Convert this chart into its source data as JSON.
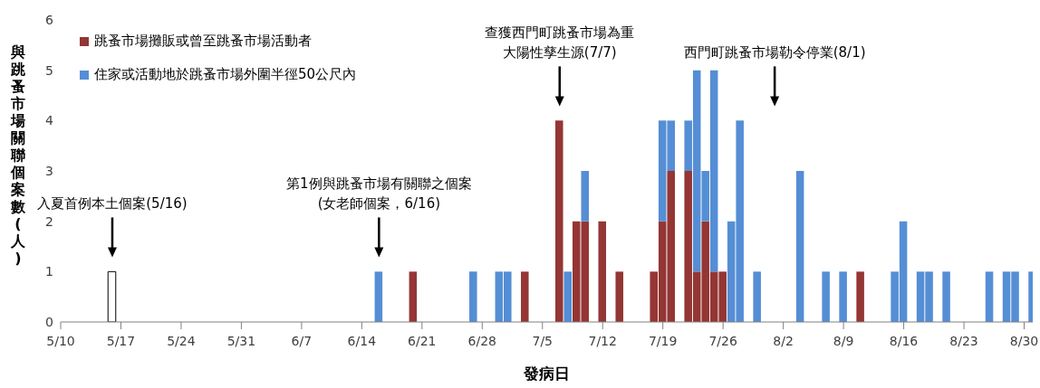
{
  "chart_data": {
    "type": "bar",
    "stacked": true,
    "xlabel": "發病日",
    "ylabel": "與跳蚤市場關聯個案數(人)",
    "xlim": [
      "--05-10",
      "--08-31"
    ],
    "xticks": [
      {
        "value": "--05-10",
        "label": "5/10"
      },
      {
        "value": "--05-17",
        "label": "5/17"
      },
      {
        "value": "--05-24",
        "label": "5/24"
      },
      {
        "value": "--05-31",
        "label": "5/31"
      },
      {
        "value": "--06-07",
        "label": "6/7"
      },
      {
        "value": "--06-14",
        "label": "6/14"
      },
      {
        "value": "--06-21",
        "label": "6/21"
      },
      {
        "value": "--06-28",
        "label": "6/28"
      },
      {
        "value": "--07-05",
        "label": "7/5"
      },
      {
        "value": "--07-12",
        "label": "7/12"
      },
      {
        "value": "--07-19",
        "label": "7/19"
      },
      {
        "value": "--07-26",
        "label": "7/26"
      },
      {
        "value": "--08-02",
        "label": "8/2"
      },
      {
        "value": "--08-09",
        "label": "8/9"
      },
      {
        "value": "--08-16",
        "label": "8/16"
      },
      {
        "value": "--08-23",
        "label": "8/23"
      },
      {
        "value": "--08-30",
        "label": "8/30"
      }
    ],
    "ylim": [
      0,
      6
    ],
    "yticks": [
      0,
      1,
      2,
      3,
      4,
      5,
      6
    ],
    "legend": "top left",
    "x": [
      "--05-16",
      "--06-16",
      "--06-20",
      "--06-27",
      "--06-30",
      "--07-01",
      "--07-03",
      "--07-07",
      "--07-08",
      "--07-09",
      "--07-10",
      "--07-12",
      "--07-14",
      "--07-18",
      "--07-19",
      "--07-20",
      "--07-22",
      "--07-23",
      "--07-24",
      "--07-25",
      "--07-26",
      "--07-27",
      "--07-28",
      "--07-30",
      "--08-04",
      "--08-07",
      "--08-09",
      "--08-11",
      "--08-15",
      "--08-16",
      "--08-18",
      "--08-19",
      "--08-21",
      "--08-26",
      "--08-28",
      "--08-29",
      "--08-31"
    ],
    "series": [
      {
        "name": "跳蚤市場攤販或曾至跳蚤市場活動者",
        "color": "#943634",
        "values": [
          null,
          null,
          1,
          null,
          null,
          null,
          1,
          4,
          null,
          2,
          2,
          2,
          1,
          1,
          2,
          3,
          3,
          1,
          2,
          1,
          1,
          null,
          null,
          null,
          null,
          null,
          null,
          1,
          null,
          null,
          null,
          null,
          null,
          null,
          null,
          null,
          null
        ]
      },
      {
        "name": "住家或活動地於跳蚤市場外圍半徑50公尺內",
        "color": "#558ed5",
        "values": [
          null,
          1,
          null,
          1,
          1,
          1,
          null,
          null,
          1,
          null,
          1,
          null,
          null,
          null,
          2,
          1,
          1,
          4,
          1,
          4,
          null,
          2,
          4,
          1,
          3,
          1,
          1,
          null,
          1,
          2,
          1,
          1,
          1,
          1,
          1,
          1,
          1
        ]
      },
      {
        "color": "#ffffff",
        "values": [
          1,
          null,
          null,
          null,
          null,
          null,
          null,
          null,
          null,
          null,
          null,
          null,
          null,
          null,
          null,
          null,
          null,
          null,
          null,
          null,
          null,
          null,
          null,
          null,
          null,
          null,
          null,
          null,
          null,
          null,
          null,
          null,
          null,
          null,
          null,
          null,
          null
        ]
      }
    ],
    "ref_lines": [
      {
        "axis": "x",
        "value": "--05-16",
        "label": "入夏首例本土個案(5/16)"
      },
      {
        "axis": "x",
        "value": "--06-16",
        "label": "第1例與跳蚤市場有關聯之個案(女老師個案，6/16)"
      },
      {
        "axis": "x",
        "value": "--07-07",
        "label": "查獲西門町跳蚤市場為重大陽性孳生源(7/7)"
      },
      {
        "axis": "x",
        "value": "--08-01",
        "label": "西門町跳蚤市場勒令停業(8/1)"
      }
    ]
  }
}
